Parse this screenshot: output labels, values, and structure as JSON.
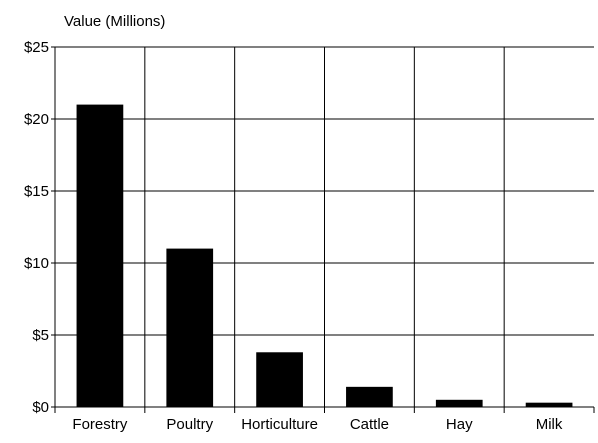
{
  "chart_data": {
    "type": "bar",
    "title": "",
    "ylabel": "Value (Millions)",
    "xlabel": "",
    "categories": [
      "Forestry",
      "Poultry",
      "Horticulture",
      "Cattle",
      "Hay",
      "Milk"
    ],
    "values": [
      21,
      11,
      3.8,
      1.4,
      0.5,
      0.3
    ],
    "ylim": [
      0,
      25
    ],
    "yticks": [
      0,
      5,
      10,
      15,
      20,
      25
    ],
    "ytick_labels": [
      "$0",
      "$5",
      "$10",
      "$15",
      "$20",
      "$25"
    ],
    "grid": true,
    "legend": "none",
    "colors": {
      "bar": "#000000",
      "grid": "#000000",
      "background": "#ffffff"
    }
  }
}
